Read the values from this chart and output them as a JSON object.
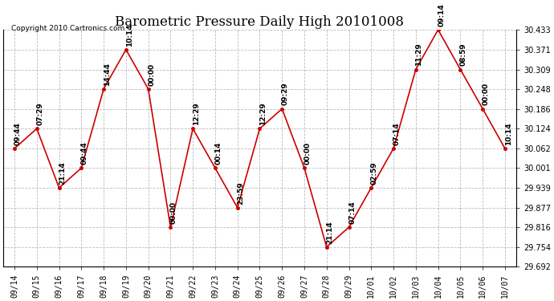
{
  "title": "Barometric Pressure Daily High 20101008",
  "copyright": "Copyright 2010 Cartronics.com",
  "x_labels": [
    "09/14",
    "09/15",
    "09/16",
    "09/17",
    "09/18",
    "09/19",
    "09/20",
    "09/21",
    "09/22",
    "09/23",
    "09/24",
    "09/25",
    "09/26",
    "09/27",
    "09/28",
    "09/29",
    "10/01",
    "10/02",
    "10/03",
    "10/04",
    "10/05",
    "10/06",
    "10/07"
  ],
  "y_values": [
    30.062,
    30.124,
    29.939,
    30.001,
    30.248,
    30.371,
    30.248,
    29.816,
    30.124,
    30.001,
    29.877,
    30.124,
    30.186,
    30.001,
    29.754,
    29.816,
    29.939,
    30.062,
    30.309,
    30.433,
    30.309,
    30.186,
    30.062
  ],
  "point_labels": [
    "09:44",
    "07:29",
    "21:14",
    "09:44",
    "14:44",
    "10:14",
    "00:00",
    "00:00",
    "12:29",
    "00:14",
    "23:59",
    "12:29",
    "09:29",
    "00:00",
    "21:14",
    "07:14",
    "02:59",
    "07:14",
    "11:29",
    "09:14",
    "08:59",
    "00:00",
    "10:14"
  ],
  "ylim_min": 29.692,
  "ylim_max": 30.433,
  "yticks": [
    29.692,
    29.754,
    29.816,
    29.877,
    29.939,
    30.001,
    30.062,
    30.124,
    30.186,
    30.248,
    30.309,
    30.371,
    30.433
  ],
  "line_color": "#cc0000",
  "marker_color": "#cc0000",
  "marker_size": 3,
  "bg_color": "#ffffff",
  "grid_color": "#bbbbbb",
  "title_fontsize": 12,
  "label_fontsize": 7,
  "point_label_fontsize": 6.5
}
